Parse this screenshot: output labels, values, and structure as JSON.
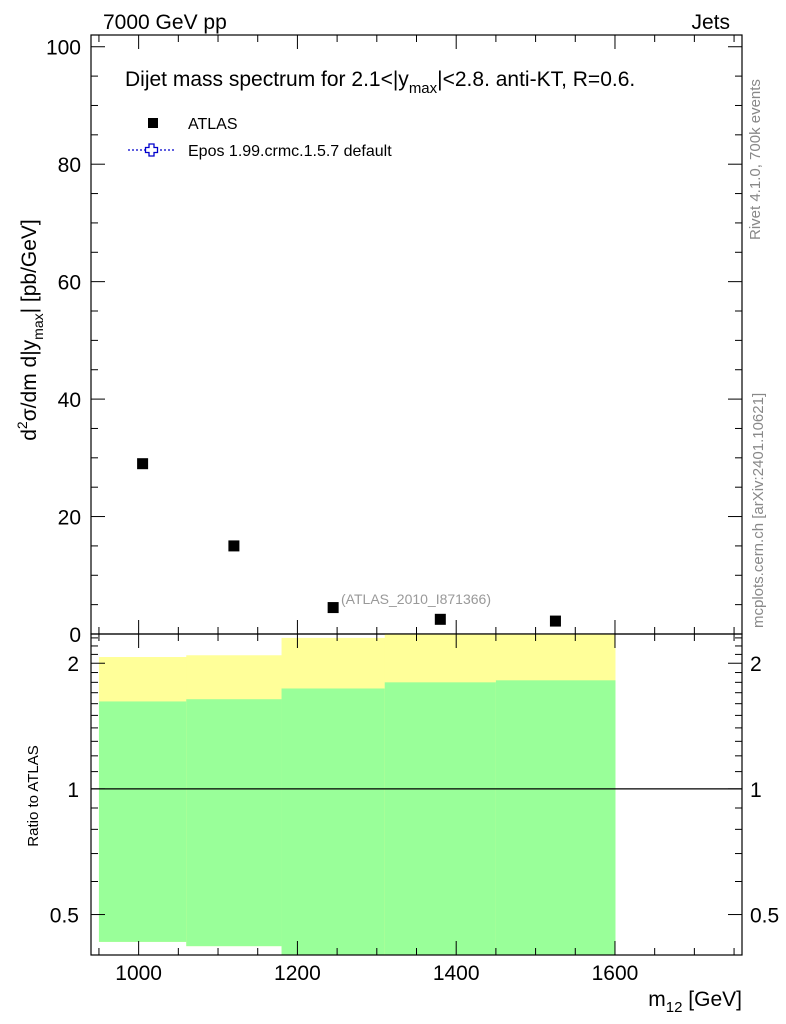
{
  "header": {
    "left": "7000 GeV pp",
    "right": "Jets"
  },
  "side_texts": {
    "rivet": "Rivet 4.1.0,  700k events",
    "mcplots": "mcplots.cern.ch [arXiv:2401.10621]"
  },
  "colors": {
    "data_marker": "#000000",
    "mc_line": "#0000cc",
    "band_outer": "#ffff99",
    "band_inner": "#99ff99"
  },
  "chart_data": [
    {
      "type": "scatter",
      "title_main": "Dijet mass spectrum for 2.1<|y",
      "title_sub": "max",
      "title_rest": "|<2.8.  anti-KT, R=0.6.",
      "ylabel_d": "d",
      "ylabel_sup": "2",
      "ylabel_main": "σ/dm d|y",
      "ylabel_sub": "max",
      "ylabel_rest": "| [pb/GeV]",
      "xlim": [
        940,
        1760
      ],
      "ylim": [
        0,
        102
      ],
      "yticks": [
        0,
        20,
        40,
        60,
        80,
        100
      ],
      "ytick_labels": [
        "0",
        "20",
        "40",
        "60",
        "80",
        "100"
      ],
      "legend_position": "top-left",
      "legend": [
        {
          "label": "ATLAS",
          "style": "square-marker"
        },
        {
          "label": "Epos 1.99.crmc.1.5.7 default",
          "style": "dotted-cross-marker"
        }
      ],
      "watermark": "(ATLAS_2010_I871366)",
      "series": [
        {
          "name": "ATLAS",
          "x": [
            1005,
            1120,
            1245,
            1380,
            1525
          ],
          "y": [
            29,
            15,
            4.5,
            2.5,
            2.2
          ]
        }
      ]
    },
    {
      "type": "area",
      "ylabel": "Ratio to ATLAS",
      "xlabel_main": "m",
      "xlabel_sub": "12",
      "xlabel_rest": " [GeV]",
      "xlim": [
        940,
        1760
      ],
      "xticks": [
        1000,
        1200,
        1400,
        1600
      ],
      "xtick_labels": [
        "1000",
        "1200",
        "1400",
        "1600"
      ],
      "ylim": [
        0.4,
        2.35
      ],
      "yscale": "log",
      "yticks": [
        0.5,
        1,
        2
      ],
      "ytick_labels": [
        "0.5",
        "1",
        "2"
      ],
      "reference_line": 1,
      "bins": [
        {
          "x": [
            950,
            1060
          ],
          "outer": [
            0.43,
            2.07
          ],
          "inner": [
            0.43,
            1.62
          ]
        },
        {
          "x": [
            1060,
            1180
          ],
          "outer": [
            0.42,
            2.09
          ],
          "inner": [
            0.42,
            1.64
          ]
        },
        {
          "x": [
            1180,
            1310
          ],
          "outer": [
            0.4,
            2.3
          ],
          "inner": [
            0.4,
            1.74
          ]
        },
        {
          "x": [
            1310,
            1450
          ],
          "outer": [
            0.4,
            2.5
          ],
          "inner": [
            0.4,
            1.8
          ]
        },
        {
          "x": [
            1450,
            1600
          ],
          "outer": [
            0.4,
            2.5
          ],
          "inner": [
            0.4,
            1.82
          ]
        }
      ]
    }
  ]
}
